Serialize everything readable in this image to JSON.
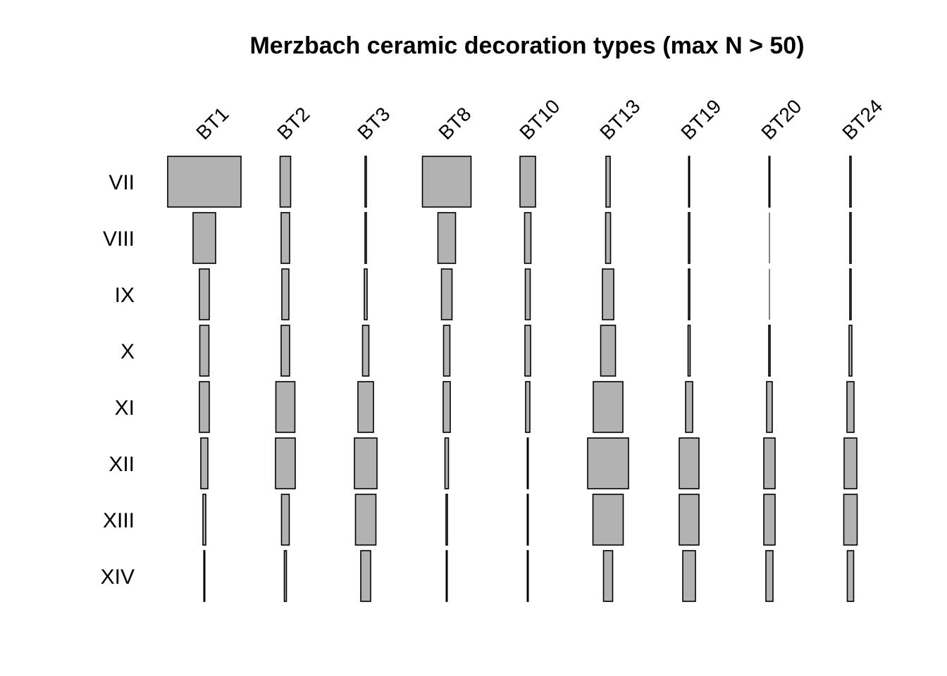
{
  "chart_data": {
    "type": "battleship",
    "title": "Merzbach ceramic decoration types (max N > 50)",
    "columns": [
      "BT1",
      "BT2",
      "BT3",
      "BT8",
      "BT10",
      "BT13",
      "BT19",
      "BT20",
      "BT24"
    ],
    "rows": [
      "VII",
      "VIII",
      "IX",
      "X",
      "XI",
      "XII",
      "XIII",
      "XIV"
    ],
    "values": [
      [
        104,
        15,
        2,
        69,
        22,
        6,
        1,
        1,
        2
      ],
      [
        32,
        12,
        2,
        25,
        9,
        7,
        2,
        0,
        2
      ],
      [
        14,
        10,
        4,
        15,
        7,
        16,
        2,
        0,
        2
      ],
      [
        13,
        12,
        9,
        9,
        8,
        21,
        3,
        2,
        4
      ],
      [
        14,
        27,
        22,
        10,
        6,
        42,
        10,
        8,
        10
      ],
      [
        10,
        28,
        32,
        5,
        1,
        58,
        28,
        16,
        18
      ],
      [
        4,
        11,
        29,
        2,
        1,
        43,
        28,
        16,
        19
      ],
      [
        1,
        3,
        14,
        1,
        1,
        13,
        18,
        10,
        9
      ]
    ],
    "bar_color": "#b2b2b2",
    "outline_color": "#000000",
    "grid": false
  }
}
